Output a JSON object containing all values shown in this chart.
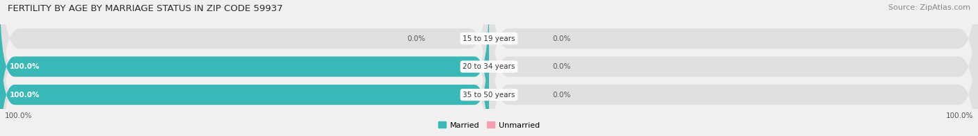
{
  "title": "FERTILITY BY AGE BY MARRIAGE STATUS IN ZIP CODE 59937",
  "source": "Source: ZipAtlas.com",
  "categories": [
    "15 to 19 years",
    "20 to 34 years",
    "35 to 50 years"
  ],
  "married_values": [
    0.0,
    100.0,
    100.0
  ],
  "unmarried_values": [
    0.0,
    0.0,
    0.0
  ],
  "married_color": "#3ab8b8",
  "unmarried_color": "#f4a0b0",
  "bar_bg_color": "#e0e0e0",
  "legend_married": "Married",
  "legend_unmarried": "Unmarried",
  "title_fontsize": 9.5,
  "source_fontsize": 8,
  "bar_label_fontsize": 7.5,
  "category_fontsize": 7.5,
  "bg_color": "#f0f0f0",
  "white": "#ffffff"
}
